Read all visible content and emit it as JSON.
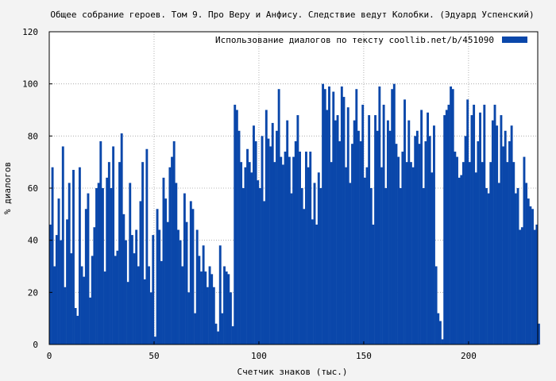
{
  "chart_data": {
    "type": "area",
    "title": "Общее собрание героев. Том 9. Про Веру и Анфису. Следствие ведут Колобки. (Эдуард Успенский)",
    "xlabel": "Счетчик знаков (тыс.)",
    "ylabel": "% диалогов",
    "xlim": [
      0,
      233
    ],
    "ylim": [
      0,
      120
    ],
    "x_ticks": [
      0,
      50,
      100,
      150,
      200
    ],
    "y_ticks": [
      0,
      20,
      40,
      60,
      80,
      100,
      120
    ],
    "grid": true,
    "legend_position": "top-right",
    "series": [
      {
        "name": "Использование диалогов по тексту  coollib.net/b/451090",
        "color": "#0a47aa",
        "x": [
          0,
          1,
          2,
          3,
          4,
          5,
          6,
          7,
          8,
          9,
          10,
          11,
          12,
          13,
          14,
          15,
          16,
          17,
          18,
          19,
          20,
          21,
          22,
          23,
          24,
          25,
          26,
          27,
          28,
          29,
          30,
          31,
          32,
          33,
          34,
          35,
          36,
          37,
          38,
          39,
          40,
          41,
          42,
          43,
          44,
          45,
          46,
          47,
          48,
          49,
          50,
          51,
          52,
          53,
          54,
          55,
          56,
          57,
          58,
          59,
          60,
          61,
          62,
          63,
          64,
          65,
          66,
          67,
          68,
          69,
          70,
          71,
          72,
          73,
          74,
          75,
          76,
          77,
          78,
          79,
          80,
          81,
          82,
          83,
          84,
          85,
          86,
          87,
          88,
          89,
          90,
          91,
          92,
          93,
          94,
          95,
          96,
          97,
          98,
          99,
          100,
          101,
          102,
          103,
          104,
          105,
          106,
          107,
          108,
          109,
          110,
          111,
          112,
          113,
          114,
          115,
          116,
          117,
          118,
          119,
          120,
          121,
          122,
          123,
          124,
          125,
          126,
          127,
          128,
          129,
          130,
          131,
          132,
          133,
          134,
          135,
          136,
          137,
          138,
          139,
          140,
          141,
          142,
          143,
          144,
          145,
          146,
          147,
          148,
          149,
          150,
          151,
          152,
          153,
          154,
          155,
          156,
          157,
          158,
          159,
          160,
          161,
          162,
          163,
          164,
          165,
          166,
          167,
          168,
          169,
          170,
          171,
          172,
          173,
          174,
          175,
          176,
          177,
          178,
          179,
          180,
          181,
          182,
          183,
          184,
          185,
          186,
          187,
          188,
          189,
          190,
          191,
          192,
          193,
          194,
          195,
          196,
          197,
          198,
          199,
          200,
          201,
          202,
          203,
          204,
          205,
          206,
          207,
          208,
          209,
          210,
          211,
          212,
          213,
          214,
          215,
          216,
          217,
          218,
          219,
          220,
          221,
          222,
          223,
          224,
          225,
          226,
          227,
          228,
          229,
          230,
          231,
          232,
          233
        ],
        "values": [
          46,
          68,
          30,
          42,
          56,
          40,
          76,
          22,
          48,
          62,
          35,
          67,
          14,
          11,
          68,
          30,
          26,
          52,
          58,
          18,
          34,
          45,
          60,
          62,
          78,
          60,
          28,
          64,
          70,
          60,
          76,
          34,
          36,
          70,
          81,
          50,
          40,
          24,
          62,
          42,
          35,
          44,
          30,
          55,
          70,
          25,
          75,
          30,
          20,
          42,
          3,
          52,
          44,
          32,
          64,
          56,
          47,
          68,
          72,
          78,
          62,
          44,
          40,
          30,
          58,
          47,
          20,
          55,
          52,
          12,
          44,
          34,
          28,
          38,
          28,
          22,
          30,
          27,
          22,
          8,
          5,
          38,
          12,
          30,
          28,
          27,
          20,
          7,
          92,
          90,
          82,
          70,
          60,
          68,
          75,
          70,
          66,
          84,
          78,
          63,
          60,
          80,
          55,
          90,
          79,
          76,
          85,
          70,
          82,
          98,
          72,
          69,
          74,
          86,
          72,
          58,
          72,
          78,
          88,
          74,
          60,
          52,
          74,
          68,
          74,
          48,
          62,
          46,
          66,
          60,
          100,
          98,
          90,
          99,
          70,
          97,
          86,
          88,
          78,
          99,
          95,
          68,
          91,
          62,
          77,
          86,
          98,
          82,
          78,
          92,
          64,
          68,
          88,
          60,
          46,
          88,
          82,
          99,
          68,
          92,
          60,
          86,
          82,
          98,
          100,
          77,
          72,
          60,
          74,
          94,
          70,
          86,
          70,
          68,
          80,
          82,
          77,
          90,
          60,
          78,
          89,
          80,
          66,
          84,
          30,
          12,
          9,
          2,
          88,
          90,
          92,
          99,
          98,
          74,
          72,
          64,
          65,
          70,
          80,
          94,
          70,
          88,
          92,
          66,
          78,
          89,
          70,
          92,
          60,
          58,
          70,
          86,
          92,
          84,
          62,
          88,
          76,
          82,
          70,
          78,
          84,
          70,
          58,
          60,
          44,
          45,
          72,
          62,
          56,
          53,
          52,
          44,
          46,
          8
        ]
      }
    ]
  }
}
